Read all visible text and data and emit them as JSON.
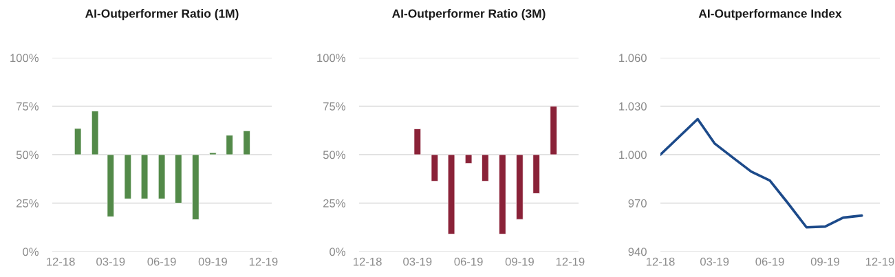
{
  "chart_data": [
    {
      "type": "bar",
      "title": "AI-Outperformer Ratio (1M)",
      "x": [
        "2019-01-01",
        "2019-02-01",
        "2019-03-01",
        "2019-04-01",
        "2019-05-01",
        "2019-06-01",
        "2019-07-01",
        "2019-08-01",
        "2019-09-01",
        "2019-10-01",
        "2019-11-01"
      ],
      "base": [
        50,
        50,
        50,
        50,
        50,
        50,
        50,
        50,
        50,
        50,
        50
      ],
      "values": [
        13.5,
        22.5,
        -32,
        -22.8,
        -22.8,
        -22.8,
        -25,
        -33.5,
        1,
        10,
        12.3
      ],
      "color": "#538a49",
      "xlim": [
        "2018-11-16",
        "2019-12-16"
      ],
      "xticks": [
        {
          "value": "2018-12-01",
          "label": "12-18"
        },
        {
          "value": "2019-03-01",
          "label": "03-19"
        },
        {
          "value": "2019-06-01",
          "label": "06-19"
        },
        {
          "value": "2019-09-01",
          "label": "09-19"
        },
        {
          "value": "2019-12-01",
          "label": "12-19"
        }
      ],
      "ylim": [
        0,
        100
      ],
      "yticks": [
        {
          "value": 0,
          "label": "0%"
        },
        {
          "value": 25,
          "label": "25%"
        },
        {
          "value": 50,
          "label": "50%"
        },
        {
          "value": 75,
          "label": "75%"
        },
        {
          "value": 100,
          "label": "100%"
        }
      ],
      "grid": "y"
    },
    {
      "type": "bar",
      "title": "AI-Outperformer Ratio (3M)",
      "x": [
        "2019-03-01",
        "2019-04-01",
        "2019-05-01",
        "2019-06-01",
        "2019-07-01",
        "2019-08-01",
        "2019-09-01",
        "2019-10-01",
        "2019-11-01"
      ],
      "base": [
        50,
        50,
        50,
        50,
        50,
        50,
        50,
        50,
        50
      ],
      "values": [
        13.3,
        -13.7,
        -41,
        -4.5,
        -13.7,
        -41,
        -33.4,
        -20,
        25
      ],
      "color": "#8a2238",
      "xlim": [
        "2018-11-16",
        "2019-12-16"
      ],
      "xticks": [
        {
          "value": "2018-12-01",
          "label": "12-18"
        },
        {
          "value": "2019-03-01",
          "label": "03-19"
        },
        {
          "value": "2019-06-01",
          "label": "06-19"
        },
        {
          "value": "2019-09-01",
          "label": "09-19"
        },
        {
          "value": "2019-12-01",
          "label": "12-19"
        }
      ],
      "ylim": [
        0,
        100
      ],
      "yticks": [
        {
          "value": 0,
          "label": "0%"
        },
        {
          "value": 25,
          "label": "25%"
        },
        {
          "value": 50,
          "label": "50%"
        },
        {
          "value": 75,
          "label": "75%"
        },
        {
          "value": 100,
          "label": "100%"
        }
      ],
      "grid": "y"
    },
    {
      "type": "line",
      "title": "AI-Outperformance Index",
      "x": [
        "2018-12-01",
        "2019-02-01",
        "2019-03-01",
        "2019-04-01",
        "2019-05-01",
        "2019-06-01",
        "2019-07-01",
        "2019-08-01",
        "2019-09-01",
        "2019-10-01",
        "2019-11-01"
      ],
      "values": [
        1000,
        1022,
        1007,
        998,
        989.5,
        984,
        970,
        955,
        955.5,
        961,
        962.3
      ],
      "color": "#1c4a8a",
      "xlim": [
        "2018-12-01",
        "2019-12-01"
      ],
      "xticks": [
        {
          "value": "2018-12-01",
          "label": "12-18"
        },
        {
          "value": "2019-03-01",
          "label": "03-19"
        },
        {
          "value": "2019-06-01",
          "label": "06-19"
        },
        {
          "value": "2019-09-01",
          "label": "09-19"
        },
        {
          "value": "2019-12-01",
          "label": "12-19"
        }
      ],
      "ylim": [
        940,
        1060
      ],
      "yticks": [
        {
          "value": 940,
          "label": "940"
        },
        {
          "value": 970,
          "label": "970"
        },
        {
          "value": 1000,
          "label": "1.000"
        },
        {
          "value": 1030,
          "label": "1.030"
        },
        {
          "value": 1060,
          "label": "1.060"
        }
      ],
      "grid": "y"
    }
  ]
}
